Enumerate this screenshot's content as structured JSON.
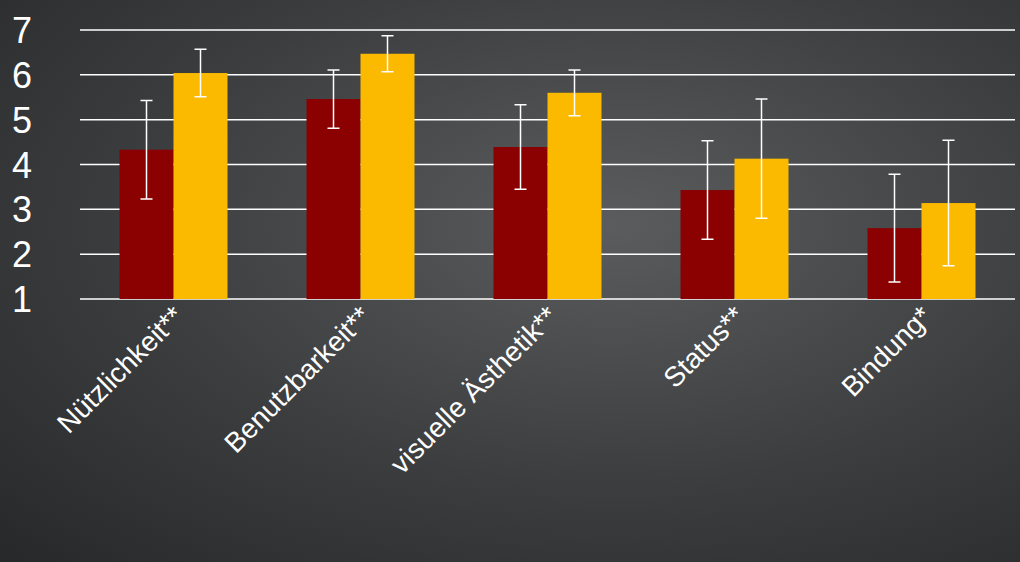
{
  "chart_data": {
    "type": "bar",
    "categories": [
      "Nützlichkeit**",
      "Benutzbarkeit**",
      "visuelle Ästhetik**",
      "Status**",
      "Bindung*"
    ],
    "series": [
      {
        "color": "#8b0000",
        "values": [
          4.33,
          5.46,
          4.39,
          3.43,
          2.58
        ],
        "errors": [
          1.1,
          0.65,
          0.94,
          1.1,
          1.2
        ]
      },
      {
        "color": "#fbb900",
        "values": [
          6.04,
          6.47,
          5.6,
          4.13,
          3.14
        ],
        "errors": [
          0.53,
          0.4,
          0.51,
          1.33,
          1.4
        ]
      }
    ],
    "ylim": [
      1,
      7
    ],
    "yticks": [
      1,
      2,
      3,
      4,
      5,
      6,
      7
    ],
    "grid": true
  }
}
